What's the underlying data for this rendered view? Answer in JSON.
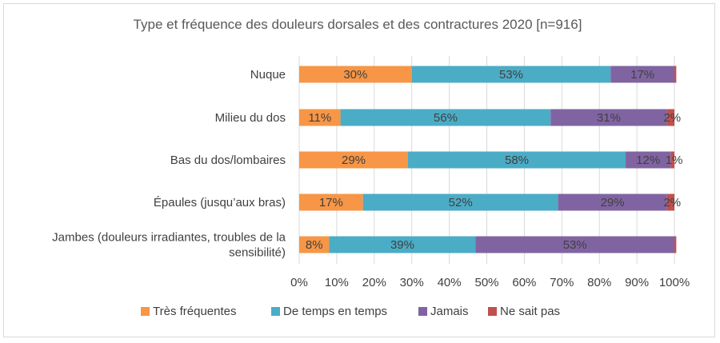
{
  "chart_data": {
    "type": "bar",
    "orientation": "horizontal",
    "stacked": true,
    "title": "Type et fréquence des douleurs dorsales et des contractures 2020 [n=916]",
    "categories": [
      [
        "Nuque"
      ],
      [
        "Milieu du dos"
      ],
      [
        "Bas du dos/lombaires"
      ],
      [
        "Épaules (jusqu’aux bras)"
      ],
      [
        "Jambes (douleurs irradiantes, troubles de la",
        "sensibilité)"
      ]
    ],
    "series": [
      {
        "name": "Très fréquentes",
        "color": "#F79646",
        "values": [
          30,
          11,
          29,
          17,
          8
        ]
      },
      {
        "name": "De temps en temps",
        "color": "#4BACC6",
        "values": [
          53,
          56,
          58,
          52,
          39
        ]
      },
      {
        "name": "Jamais",
        "color": "#8064A2",
        "values": [
          17,
          31,
          12,
          29,
          53
        ]
      },
      {
        "name": "Ne sait pas",
        "color": "#C0504D",
        "values": [
          0.5,
          2,
          1,
          2,
          0.5
        ]
      }
    ],
    "data_labels": [
      [
        "30%",
        "53%",
        "17%",
        ""
      ],
      [
        "11%",
        "56%",
        "31%",
        "2%"
      ],
      [
        "29%",
        "58%",
        "12%",
        "1%"
      ],
      [
        "17%",
        "52%",
        "29%",
        "2%"
      ],
      [
        "8%",
        "39%",
        "53%",
        ""
      ]
    ],
    "x_ticks": [
      "0%",
      "10%",
      "20%",
      "30%",
      "40%",
      "50%",
      "60%",
      "70%",
      "80%",
      "90%",
      "100%"
    ],
    "xlim": [
      0,
      100
    ],
    "legend_position": "bottom"
  }
}
